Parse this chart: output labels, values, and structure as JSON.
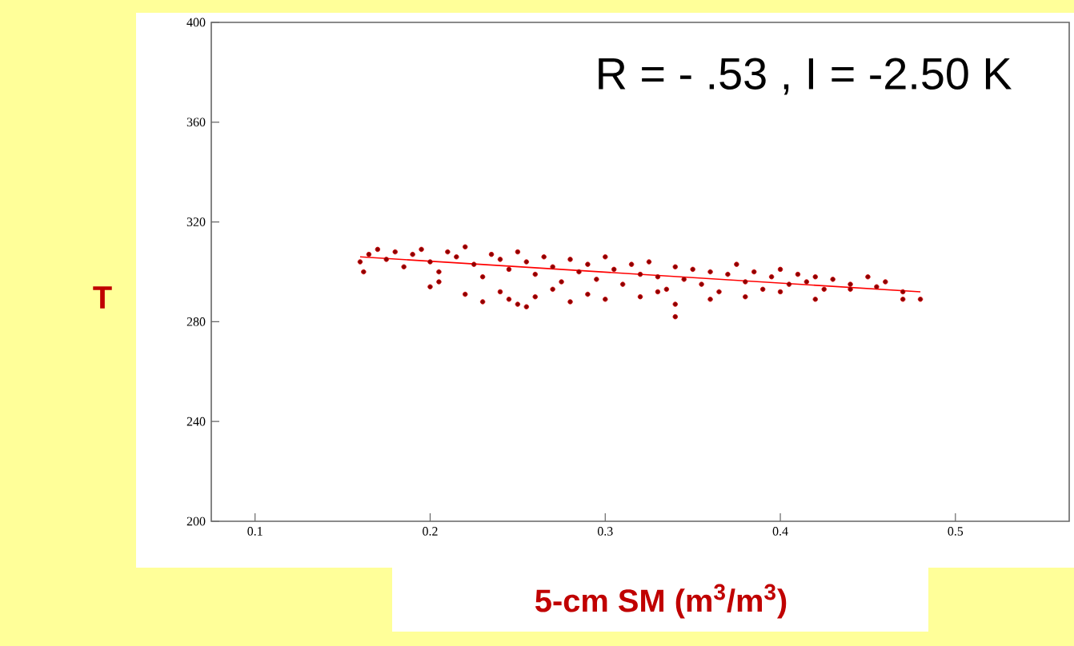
{
  "chart_data": {
    "type": "scatter",
    "xlabel": "5-cm SM (m$^{3}$/m$^{3}$)",
    "ylabel": "T",
    "annotations": [
      "R = - .53 , I = -2.50 K"
    ],
    "xlim": [
      0.075,
      0.565
    ],
    "xticks": [
      0.1,
      0.2,
      0.3,
      0.4,
      0.5
    ],
    "ylim": [
      200,
      400
    ],
    "yticks": [
      200,
      240,
      280,
      320,
      360,
      400
    ],
    "grid": false,
    "marker": "circle",
    "series": [
      {
        "color": "#8b0000",
        "x": [
          0.16,
          0.162,
          0.165,
          0.17,
          0.175,
          0.18,
          0.185,
          0.19,
          0.195,
          0.2,
          0.205,
          0.21,
          0.215,
          0.22,
          0.225,
          0.23,
          0.235,
          0.24,
          0.245,
          0.25,
          0.255,
          0.26,
          0.265,
          0.27,
          0.275,
          0.28,
          0.285,
          0.29,
          0.295,
          0.3,
          0.305,
          0.31,
          0.315,
          0.32,
          0.325,
          0.33,
          0.335,
          0.34,
          0.345,
          0.35,
          0.355,
          0.36,
          0.365,
          0.37,
          0.375,
          0.38,
          0.385,
          0.39,
          0.395,
          0.4,
          0.405,
          0.41,
          0.415,
          0.42,
          0.425,
          0.43,
          0.44,
          0.45,
          0.455,
          0.46,
          0.47,
          0.48,
          0.2,
          0.205,
          0.22,
          0.23,
          0.24,
          0.245,
          0.25,
          0.255,
          0.26,
          0.27,
          0.28,
          0.29,
          0.3,
          0.32,
          0.33,
          0.34,
          0.34,
          0.36,
          0.38,
          0.4,
          0.42,
          0.44,
          0.47
        ],
        "values": [
          304,
          300,
          307,
          309,
          305,
          308,
          302,
          307,
          309,
          304,
          300,
          308,
          306,
          310,
          303,
          298,
          307,
          305,
          301,
          308,
          304,
          299,
          306,
          302,
          296,
          305,
          300,
          303,
          297,
          306,
          301,
          295,
          303,
          299,
          304,
          298,
          293,
          302,
          297,
          301,
          295,
          300,
          292,
          299,
          303,
          296,
          300,
          293,
          298,
          301,
          295,
          299,
          296,
          298,
          293,
          297,
          295,
          298,
          294,
          296,
          292,
          289,
          294,
          296,
          291,
          288,
          292,
          289,
          287,
          286,
          290,
          293,
          288,
          291,
          289,
          290,
          292,
          287,
          282,
          289,
          290,
          292,
          289,
          293,
          289
        ]
      },
      {
        "type": "line",
        "color": "#ff0000",
        "marker": "none",
        "x": [
          0.16,
          0.48
        ],
        "values": [
          306,
          292
        ]
      }
    ]
  }
}
